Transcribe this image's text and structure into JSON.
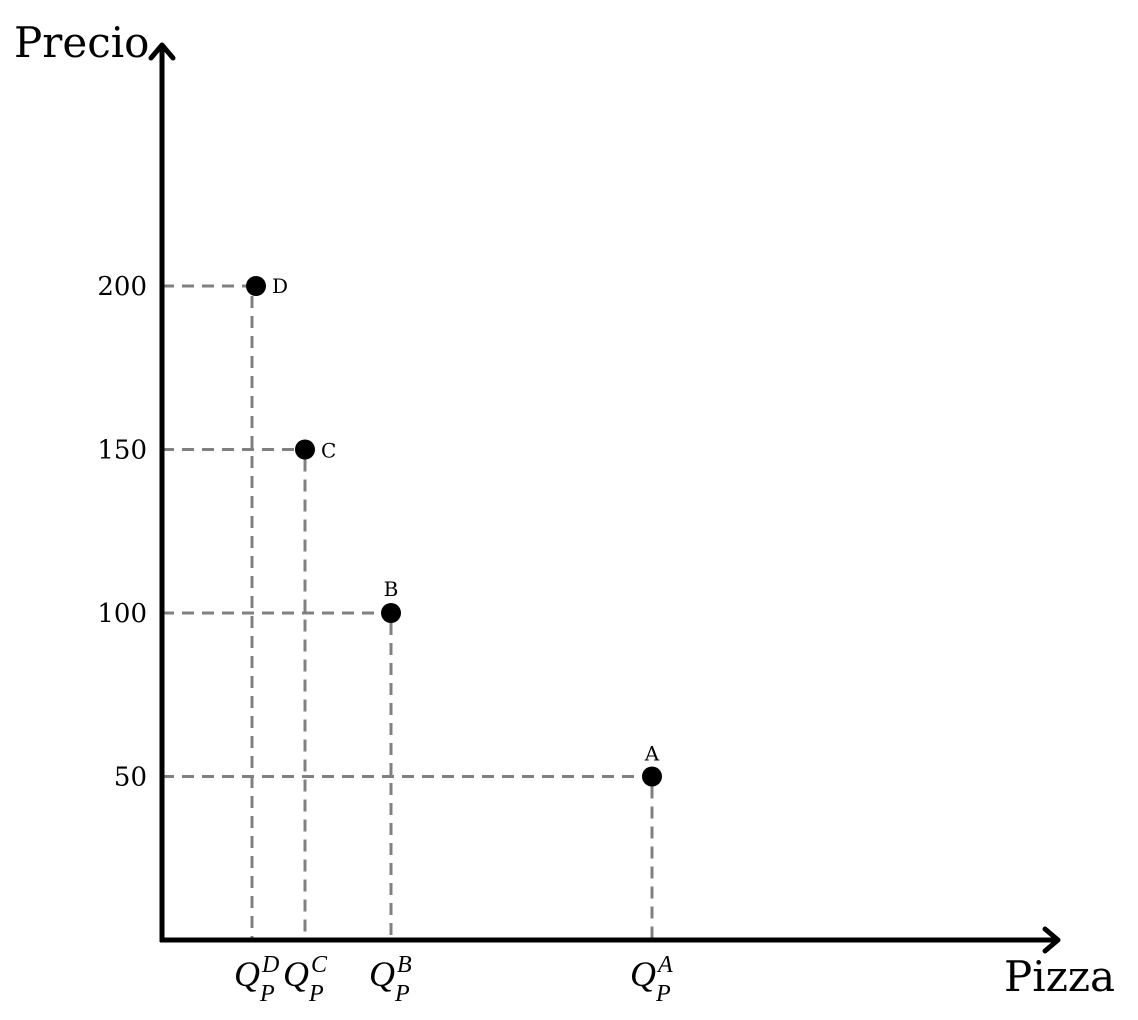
{
  "chart_data": {
    "type": "scatter",
    "ylabel": "Precio",
    "xlabel": "Pizza",
    "yticks": [
      200,
      150,
      100,
      50
    ],
    "ylim": [
      0,
      270
    ],
    "grid": false,
    "legend": "none",
    "points": [
      {
        "label": "D",
        "y": 200,
        "x_label": {
          "base": "Q",
          "sup": "D",
          "sub": "P"
        }
      },
      {
        "label": "C",
        "y": 150,
        "x_label": {
          "base": "Q",
          "sup": "C",
          "sub": "P"
        }
      },
      {
        "label": "B",
        "y": 100,
        "x_label": {
          "base": "Q",
          "sup": "B",
          "sub": "P"
        }
      },
      {
        "label": "A",
        "y": 50,
        "x_label": {
          "base": "Q",
          "sup": "A",
          "sub": "P"
        }
      }
    ]
  },
  "colors": {
    "axis": "#000000",
    "guides": "#808080",
    "points": "#000000"
  }
}
